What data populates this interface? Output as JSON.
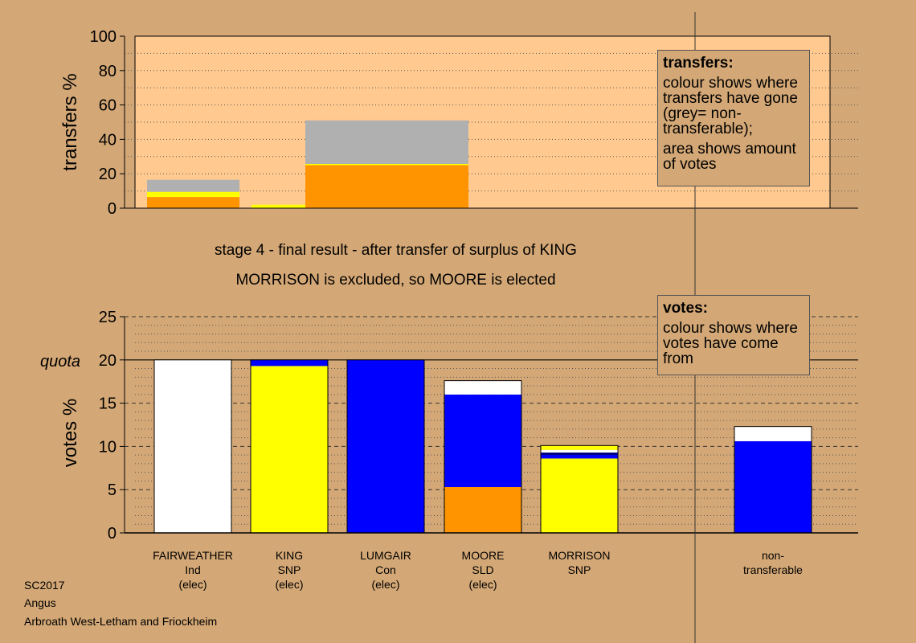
{
  "subtitle_line1": "stage 4 - final result - after transfer of surplus of KING",
  "subtitle_line2": "MORRISON is excluded, so MOORE is elected",
  "footer": {
    "line1": "SC2017",
    "line2": "Angus",
    "line3": "Arbroath West-Letham and Friockheim"
  },
  "transfers_legend": {
    "title": "transfers:",
    "text1": "colour shows where transfers have gone (grey= non-transferable);",
    "text2": "area shows amount of votes"
  },
  "votes_legend": {
    "title": "votes:",
    "text1": "colour shows where votes have come from"
  },
  "colors": {
    "background": "#d4a876",
    "plot_bg_top": "#ffc98f",
    "ind_white": "#ffffff",
    "snp_yellow": "#ffff00",
    "con_blue": "#0000ff",
    "sld_orange": "#ff9400",
    "nontransferable_grey": "#b0b0b0",
    "dark_blue": "#000080"
  },
  "chart_data": [
    {
      "type": "bar",
      "stacked": true,
      "title": "",
      "ylabel": "transfers %",
      "ylim": [
        0,
        100
      ],
      "yticks": [
        0,
        20,
        40,
        60,
        80,
        100
      ],
      "grid": "dotted",
      "bars": [
        {
          "x_range": [
            1.0,
            1.8
          ],
          "segments": [
            {
              "color": "#ff9400",
              "value": 6.5
            },
            {
              "color": "#ffff00",
              "value": 3
            },
            {
              "color": "#b0b0b0",
              "value": 7
            }
          ]
        },
        {
          "x_range": [
            2.0,
            4.3
          ],
          "segments": [
            {
              "color": "#ffff00",
              "value": 2
            }
          ]
        },
        {
          "x_range": [
            2.55,
            4.3
          ],
          "segments": [
            {
              "color": "#ff9400",
              "value": 25
            },
            {
              "color": "#ffff00",
              "value": 0.7
            },
            {
              "color": "#b0b0b0",
              "value": 25.3
            }
          ]
        }
      ]
    },
    {
      "type": "bar",
      "stacked": true,
      "title": "",
      "ylabel": "votes %",
      "ylim": [
        0,
        25
      ],
      "yticks": [
        0,
        5,
        10,
        15,
        20,
        25
      ],
      "quota_label": "quota",
      "quota": 20,
      "grid": "dotted",
      "categories": [
        [
          "FAIRWEATHER",
          "Ind",
          "(elec)"
        ],
        [
          "KING",
          "SNP",
          "(elec)"
        ],
        [
          "LUMGAIR",
          "Con",
          "(elec)"
        ],
        [
          "MOORE",
          "SLD",
          "(elec)"
        ],
        [
          "MORRISON",
          "SNP"
        ],
        [],
        [
          "non-",
          "transferable"
        ]
      ],
      "bars": [
        {
          "segments": [
            {
              "color": "#ffffff",
              "value": 20
            }
          ]
        },
        {
          "segments": [
            {
              "color": "#ffff00",
              "value": 19.3
            },
            {
              "color": "#0000ff",
              "value": 0.7
            }
          ]
        },
        {
          "segments": [
            {
              "color": "#0000ff",
              "value": 20
            }
          ]
        },
        {
          "segments": [
            {
              "color": "#ff9400",
              "value": 5.3
            },
            {
              "color": "#0000ff",
              "value": 10.7
            },
            {
              "color": "#ffffff",
              "value": 1.6
            }
          ]
        },
        {
          "segments": [
            {
              "color": "#ffff00",
              "value": 8.6
            },
            {
              "color": "#0000ff",
              "value": 0.5
            },
            {
              "color": "#ffffff",
              "value": 0.5
            },
            {
              "color": "#ffff00",
              "value": 0.5
            }
          ]
        },
        {
          "segments": []
        },
        {
          "segments": [
            {
              "color": "#0000ff",
              "value": 10.6
            },
            {
              "color": "#ffffff",
              "value": 1.7
            }
          ]
        }
      ]
    }
  ]
}
